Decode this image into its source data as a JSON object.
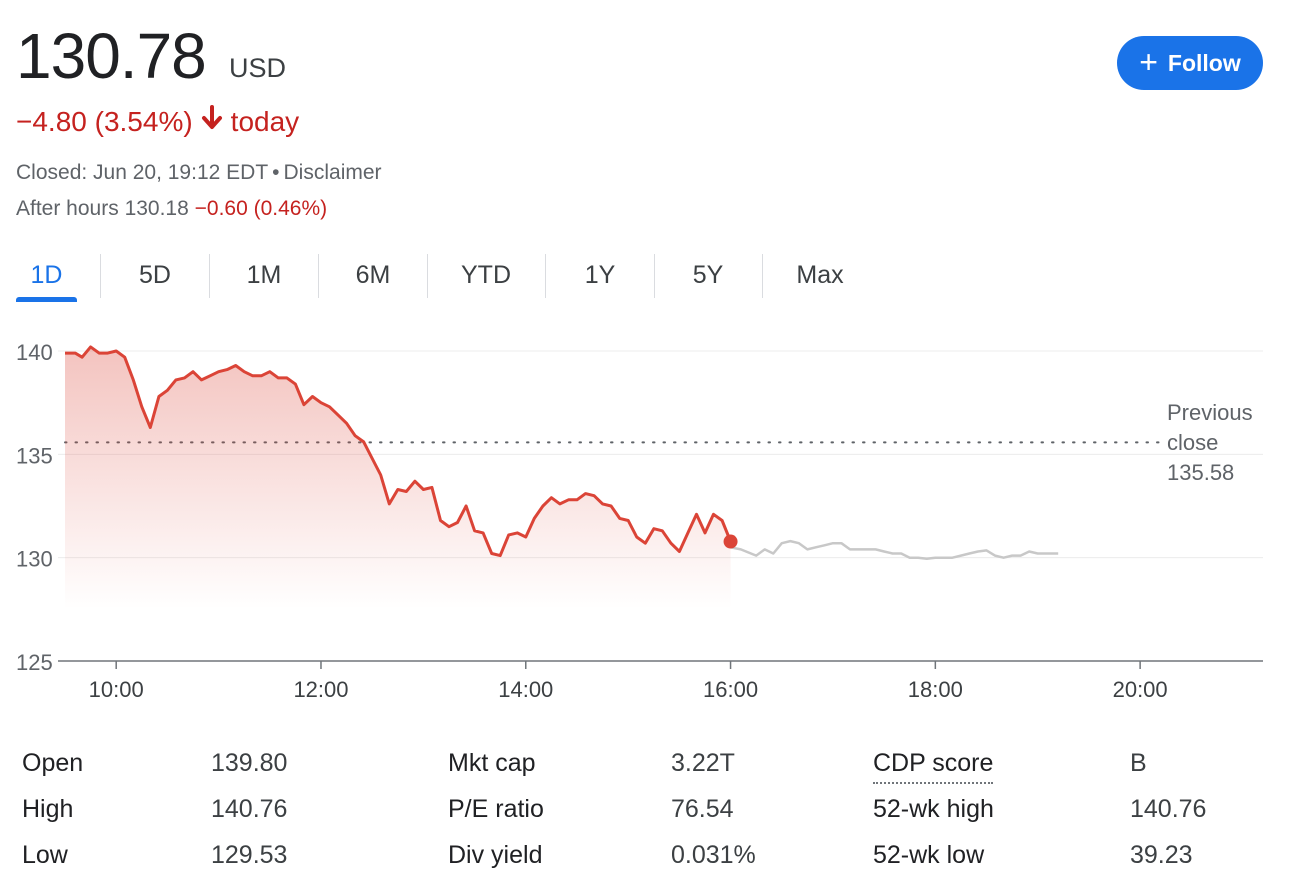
{
  "quote": {
    "price": "130.78",
    "currency": "USD",
    "change": "−4.80 (3.54%)",
    "direction_icon": "arrow-down-icon",
    "today": "today",
    "closed": "Closed: Jun 20, 19:12 EDT",
    "separator": "•",
    "disclaimer": "Disclaimer",
    "after_hours_label": "After hours",
    "after_hours_price": "130.18",
    "after_hours_change": "−0.60 (0.46%)"
  },
  "follow_button": {
    "icon": "plus-icon",
    "label": "Follow"
  },
  "tabs": [
    "1D",
    "5D",
    "1M",
    "6M",
    "YTD",
    "1Y",
    "5Y",
    "Max"
  ],
  "active_tab": "1D",
  "colors": {
    "accent": "#1a73e8",
    "negative": "#c5221f",
    "line": "#db4437",
    "after_hours_line": "#c8c8c8"
  },
  "chart_data": {
    "type": "line",
    "xlabel": "",
    "ylabel": "",
    "ylim": [
      125,
      141
    ],
    "y_ticks": [
      125,
      130,
      135,
      140
    ],
    "x_range": [
      9.5,
      21.2
    ],
    "x_ticks": [
      "10:00",
      "12:00",
      "14:00",
      "16:00",
      "18:00",
      "20:00"
    ],
    "x_tick_values": [
      10,
      12,
      14,
      16,
      18,
      20
    ],
    "previous_close": {
      "label_line1": "Previous",
      "label_line2": "close",
      "value": "135.58",
      "y": 135.58
    },
    "series": [
      {
        "session": "regular",
        "x": [
          9.5,
          9.6,
          9.667,
          9.75,
          9.833,
          9.917,
          10.0,
          10.083,
          10.167,
          10.25,
          10.333,
          10.417,
          10.5,
          10.583,
          10.667,
          10.75,
          10.833,
          10.917,
          11.0,
          11.083,
          11.167,
          11.25,
          11.333,
          11.417,
          11.5,
          11.583,
          11.667,
          11.75,
          11.833,
          11.917,
          12.0,
          12.083,
          12.167,
          12.25,
          12.333,
          12.417,
          12.5,
          12.583,
          12.667,
          12.75,
          12.833,
          12.917,
          13.0,
          13.083,
          13.167,
          13.25,
          13.333,
          13.417,
          13.5,
          13.583,
          13.667,
          13.75,
          13.833,
          13.917,
          14.0,
          14.083,
          14.167,
          14.25,
          14.333,
          14.417,
          14.5,
          14.583,
          14.667,
          14.75,
          14.833,
          14.917,
          15.0,
          15.083,
          15.167,
          15.25,
          15.333,
          15.417,
          15.5,
          15.583,
          15.667,
          15.75,
          15.833,
          15.917,
          16.0
        ],
        "y": [
          139.9,
          139.9,
          139.7,
          140.2,
          139.9,
          139.9,
          140.0,
          139.7,
          138.6,
          137.3,
          136.3,
          137.8,
          138.1,
          138.6,
          138.7,
          139.0,
          138.6,
          138.8,
          139.0,
          139.1,
          139.3,
          139.0,
          138.8,
          138.8,
          139.0,
          138.7,
          138.7,
          138.4,
          137.4,
          137.8,
          137.5,
          137.3,
          136.9,
          136.5,
          135.9,
          135.6,
          134.8,
          134.0,
          132.6,
          133.3,
          133.2,
          133.7,
          133.3,
          133.4,
          131.8,
          131.5,
          131.7,
          132.5,
          131.3,
          131.2,
          130.2,
          130.1,
          131.1,
          131.2,
          131.0,
          131.9,
          132.5,
          132.9,
          132.6,
          132.8,
          132.8,
          133.1,
          133.0,
          132.6,
          132.5,
          131.9,
          131.8,
          131.0,
          130.7,
          131.4,
          131.3,
          130.7,
          130.3,
          131.2,
          132.1,
          131.2,
          132.1,
          131.8,
          130.78
        ]
      },
      {
        "session": "after_hours",
        "x": [
          16.0,
          16.1,
          16.25,
          16.333,
          16.417,
          16.5,
          16.583,
          16.667,
          16.75,
          16.833,
          16.917,
          17.0,
          17.083,
          17.167,
          17.25,
          17.333,
          17.417,
          17.5,
          17.583,
          17.667,
          17.75,
          17.833,
          17.917,
          18.0,
          18.083,
          18.167,
          18.25,
          18.333,
          18.417,
          18.5,
          18.583,
          18.667,
          18.75,
          18.833,
          18.917,
          19.0,
          19.083,
          19.2
        ],
        "y": [
          130.5,
          130.4,
          130.1,
          130.4,
          130.2,
          130.7,
          130.8,
          130.7,
          130.4,
          130.5,
          130.6,
          130.7,
          130.7,
          130.4,
          130.4,
          130.4,
          130.4,
          130.3,
          130.2,
          130.2,
          130.0,
          130.0,
          129.95,
          130.0,
          130.0,
          130.0,
          130.1,
          130.2,
          130.3,
          130.35,
          130.1,
          130.0,
          130.1,
          130.1,
          130.3,
          130.2,
          130.2,
          130.2
        ]
      }
    ]
  },
  "stats": {
    "col1": [
      {
        "label": "Open",
        "value": "139.80"
      },
      {
        "label": "High",
        "value": "140.76"
      },
      {
        "label": "Low",
        "value": "129.53"
      }
    ],
    "col2": [
      {
        "label": "Mkt cap",
        "value": "3.22T"
      },
      {
        "label": "P/E ratio",
        "value": "76.54"
      },
      {
        "label": "Div yield",
        "value": "0.031%"
      }
    ],
    "col3": [
      {
        "label": "CDP score",
        "value": "B"
      },
      {
        "label": "52-wk high",
        "value": "140.76"
      },
      {
        "label": "52-wk low",
        "value": "39.23"
      }
    ]
  }
}
